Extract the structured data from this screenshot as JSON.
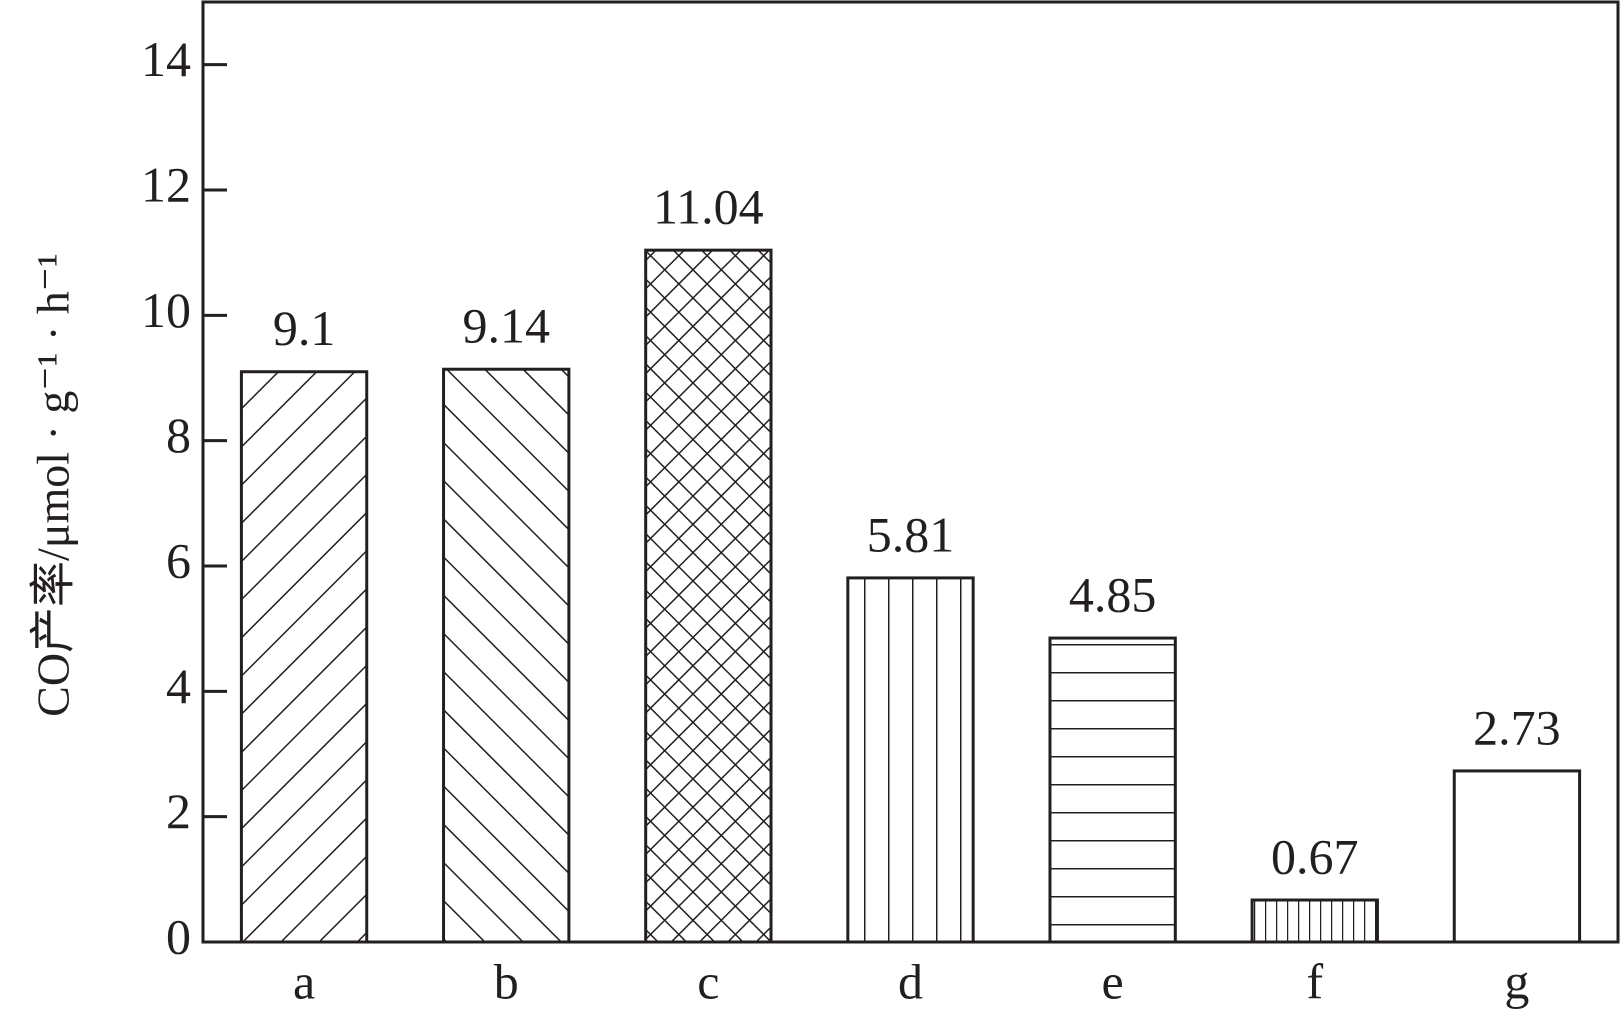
{
  "chart_data": {
    "type": "bar",
    "ylabel": "CO产率/μmol · g⁻¹ · h⁻¹",
    "categories": [
      "a",
      "b",
      "c",
      "d",
      "e",
      "f",
      "g"
    ],
    "values": [
      9.1,
      9.14,
      11.04,
      5.81,
      4.85,
      0.67,
      2.73
    ],
    "patterns": [
      "diagonal-up",
      "diagonal-down",
      "crosshatch",
      "vertical",
      "horizontal",
      "vertical-dense",
      "none"
    ],
    "color": "#231f20",
    "ylim": [
      0,
      15
    ],
    "yticks": [
      0,
      2,
      4,
      6,
      8,
      10,
      12,
      14
    ],
    "grid": false
  }
}
